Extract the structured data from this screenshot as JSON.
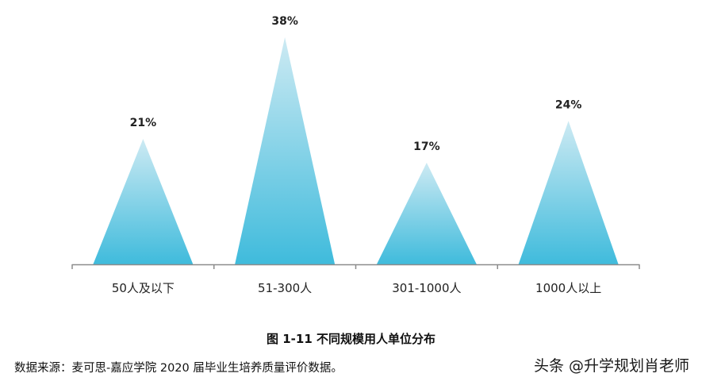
{
  "chart_data": {
    "type": "bar",
    "categories": [
      "50人及以下",
      "51-300人",
      "301-1000人",
      "1000人以上"
    ],
    "values": [
      21,
      38,
      17,
      24
    ],
    "value_labels": [
      "21%",
      "38%",
      "17%",
      "24%"
    ],
    "ylim": [
      0,
      38
    ],
    "grid": false,
    "legend": "none"
  },
  "caption": "图 1-11 不同规模用人单位分布",
  "source": "数据来源：麦可思-嘉应学院 2020 届毕业生培养质量评价数据。",
  "watermark": "头条 @升学规划肖老师",
  "colors": {
    "peak_top": "#cdeaf3",
    "peak_bottom": "#3fbbdc",
    "axis": "#8c8c8c"
  }
}
